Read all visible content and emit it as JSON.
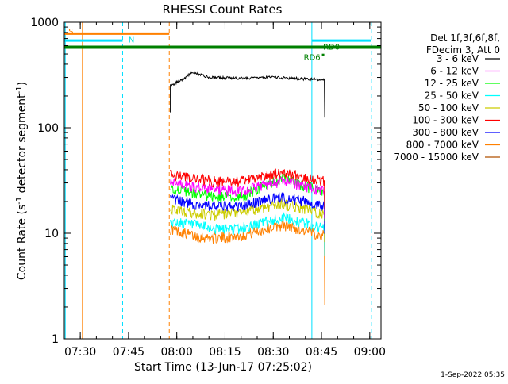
{
  "chart_data": {
    "type": "line",
    "title": "RHESSI Count Rates",
    "xlabel": "Start Time (13-Jun-17 07:25:02)",
    "ylabel": "Count Rate (s",
    "ylabel_sup1": "-1",
    "ylabel_mid": " detector segment",
    "ylabel_sup2": "-1",
    "ylabel_end": ")",
    "y_scale": "log",
    "ylim": [
      1,
      1000
    ],
    "xlim": [
      "07:25:02",
      "09:03:30"
    ],
    "x_ticks": [
      "07:30",
      "07:45",
      "08:00",
      "08:15",
      "08:30",
      "08:45",
      "09:00"
    ],
    "y_ticks": [
      "1",
      "10",
      "100",
      "1000"
    ],
    "legend_position": "right",
    "legend_header": [
      "Det 1f,3f,6f,8f,",
      "FDecim 3, Att 0"
    ],
    "series": [
      {
        "name": "3 - 6 keV",
        "color": "#000000",
        "x": [
          "07:58",
          "08:02",
          "08:05",
          "08:10",
          "08:20",
          "08:30",
          "08:40",
          "08:46"
        ],
        "values": [
          250,
          290,
          335,
          300,
          295,
          300,
          290,
          285
        ]
      },
      {
        "name": "6 - 12 keV",
        "color": "#ff00ff",
        "x": [
          "07:58",
          "08:05",
          "08:12",
          "08:20",
          "08:28",
          "08:33",
          "08:40",
          "08:46"
        ],
        "values": [
          30,
          28,
          26,
          25,
          29,
          31,
          28,
          25
        ]
      },
      {
        "name": "12 - 25 keV",
        "color": "#00ff00",
        "x": [
          "07:58",
          "08:05",
          "08:12",
          "08:20",
          "08:28",
          "08:33",
          "08:40",
          "08:46"
        ],
        "values": [
          27,
          24,
          22,
          22,
          29,
          33,
          28,
          24
        ]
      },
      {
        "name": "25 - 50 keV",
        "color": "#00ffff",
        "x": [
          "07:58",
          "08:05",
          "08:12",
          "08:20",
          "08:28",
          "08:33",
          "08:40",
          "08:46"
        ],
        "values": [
          13,
          12,
          11,
          11,
          13,
          14,
          12.5,
          11
        ]
      },
      {
        "name": "50 - 100 keV",
        "color": "#cccc00",
        "x": [
          "07:58",
          "08:05",
          "08:12",
          "08:20",
          "08:28",
          "08:33",
          "08:40",
          "08:46"
        ],
        "values": [
          17,
          15.5,
          15,
          15.5,
          18,
          19,
          17,
          15
        ]
      },
      {
        "name": "100 - 300 keV",
        "color": "#ff0000",
        "x": [
          "07:58",
          "08:05",
          "08:12",
          "08:20",
          "08:28",
          "08:33",
          "08:40",
          "08:46"
        ],
        "values": [
          36,
          33,
          31,
          31,
          35,
          38,
          34,
          31
        ]
      },
      {
        "name": "300 - 800 keV",
        "color": "#0000ff",
        "x": [
          "07:58",
          "08:05",
          "08:12",
          "08:20",
          "08:28",
          "08:33",
          "08:40",
          "08:46"
        ],
        "values": [
          21,
          19,
          18,
          18,
          21,
          22,
          20,
          18
        ]
      },
      {
        "name": "800 - 7000 keV",
        "color": "#ff8000",
        "x": [
          "07:58",
          "08:05",
          "08:12",
          "08:20",
          "08:28",
          "08:33",
          "08:40",
          "08:46"
        ],
        "values": [
          11,
          9.5,
          9,
          9.5,
          11,
          12,
          10.5,
          9.5
        ]
      },
      {
        "name": "7000 - 15000 keV",
        "color": "#b05000",
        "x": [],
        "values": []
      }
    ],
    "annotations": [
      {
        "text": "S",
        "color": "#ff8000"
      },
      {
        "text": "N",
        "color": "#00e0e0"
      },
      {
        "text": "RD0",
        "color": "#008000"
      },
      {
        "text": "RD6",
        "color": "#008000"
      }
    ],
    "footer": "1-Sep-2022 05:35"
  }
}
